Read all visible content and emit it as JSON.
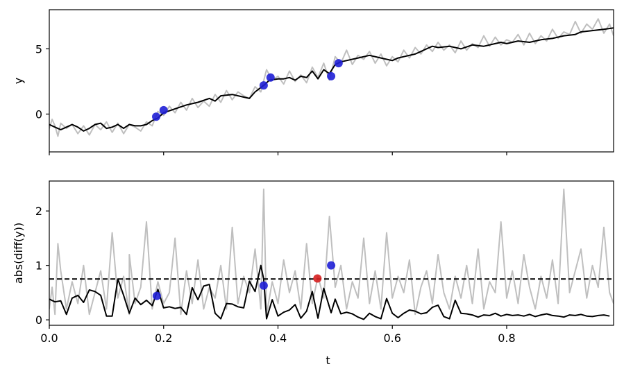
{
  "chart_data": [
    {
      "type": "line",
      "xlabel": "",
      "ylabel": "y",
      "xlim": [
        0.0,
        0.987
      ],
      "ylim": [
        -2.9,
        8.0
      ],
      "xticks": [
        0.0,
        0.2,
        0.4,
        0.6,
        0.8
      ],
      "show_xtick_labels": false,
      "yticks": [
        0,
        5
      ],
      "yticklabels": [
        "0",
        "5"
      ],
      "grid": false,
      "series": [
        {
          "role": "raw",
          "color": "#bfbfbf",
          "x": [
            0.0,
            0.005,
            0.01,
            0.015,
            0.02,
            0.03,
            0.04,
            0.05,
            0.06,
            0.07,
            0.08,
            0.09,
            0.1,
            0.11,
            0.12,
            0.13,
            0.14,
            0.15,
            0.16,
            0.17,
            0.18,
            0.19,
            0.2,
            0.21,
            0.22,
            0.23,
            0.24,
            0.25,
            0.26,
            0.27,
            0.28,
            0.29,
            0.3,
            0.31,
            0.32,
            0.33,
            0.34,
            0.35,
            0.36,
            0.37,
            0.38,
            0.39,
            0.4,
            0.41,
            0.42,
            0.43,
            0.44,
            0.45,
            0.46,
            0.47,
            0.48,
            0.49,
            0.5,
            0.51,
            0.52,
            0.53,
            0.54,
            0.55,
            0.56,
            0.57,
            0.58,
            0.59,
            0.6,
            0.61,
            0.62,
            0.63,
            0.64,
            0.65,
            0.66,
            0.67,
            0.68,
            0.69,
            0.7,
            0.71,
            0.72,
            0.73,
            0.74,
            0.75,
            0.76,
            0.77,
            0.78,
            0.79,
            0.8,
            0.81,
            0.82,
            0.83,
            0.84,
            0.85,
            0.86,
            0.87,
            0.88,
            0.89,
            0.9,
            0.91,
            0.92,
            0.93,
            0.94,
            0.95,
            0.96,
            0.97,
            0.98,
            0.987
          ],
          "y": [
            -1.1,
            -0.4,
            -0.9,
            -1.7,
            -0.7,
            -1.1,
            -0.8,
            -1.5,
            -0.9,
            -1.6,
            -0.8,
            -1.2,
            -0.6,
            -1.4,
            -0.7,
            -1.5,
            -0.8,
            -1.0,
            -1.3,
            -0.6,
            -0.9,
            0.2,
            -0.1,
            0.6,
            0.1,
            0.9,
            0.3,
            1.2,
            0.5,
            1.0,
            0.6,
            1.5,
            0.9,
            1.8,
            1.1,
            1.7,
            1.4,
            1.2,
            2.1,
            1.7,
            3.4,
            2.6,
            2.9,
            2.3,
            3.3,
            2.5,
            3.0,
            2.4,
            3.6,
            2.8,
            3.9,
            2.6,
            4.4,
            3.9,
            4.9,
            3.8,
            4.5,
            4.2,
            4.8,
            3.9,
            4.6,
            3.7,
            4.4,
            4.0,
            4.9,
            4.3,
            5.1,
            4.6,
            5.3,
            4.8,
            5.5,
            4.9,
            5.3,
            4.7,
            5.6,
            4.9,
            5.4,
            5.1,
            6.0,
            5.2,
            5.9,
            5.3,
            5.7,
            5.5,
            6.1,
            5.3,
            6.2,
            5.4,
            6.0,
            5.6,
            6.5,
            5.8,
            6.3,
            6.1,
            7.1,
            6.2,
            6.9,
            6.5,
            7.3,
            6.2,
            6.9,
            6.0
          ],
          "linewidth": 2
        },
        {
          "role": "smoothed",
          "color": "#000000",
          "x": [
            0.0,
            0.01,
            0.02,
            0.03,
            0.04,
            0.05,
            0.06,
            0.07,
            0.08,
            0.09,
            0.1,
            0.11,
            0.12,
            0.13,
            0.14,
            0.15,
            0.16,
            0.17,
            0.18,
            0.19,
            0.2,
            0.22,
            0.24,
            0.26,
            0.28,
            0.29,
            0.3,
            0.32,
            0.34,
            0.35,
            0.36,
            0.375,
            0.385,
            0.4,
            0.41,
            0.42,
            0.43,
            0.44,
            0.45,
            0.46,
            0.47,
            0.48,
            0.49,
            0.5,
            0.51,
            0.52,
            0.54,
            0.56,
            0.58,
            0.6,
            0.61,
            0.62,
            0.64,
            0.65,
            0.66,
            0.67,
            0.68,
            0.7,
            0.72,
            0.74,
            0.76,
            0.78,
            0.79,
            0.8,
            0.82,
            0.84,
            0.86,
            0.88,
            0.9,
            0.92,
            0.93,
            0.95,
            0.97,
            0.987
          ],
          "y": [
            -0.8,
            -1.0,
            -1.2,
            -1.0,
            -0.8,
            -1.0,
            -1.3,
            -1.1,
            -0.8,
            -0.7,
            -1.1,
            -1.0,
            -0.8,
            -1.1,
            -0.8,
            -0.9,
            -0.9,
            -0.8,
            -0.5,
            -0.3,
            0.1,
            0.4,
            0.7,
            0.9,
            1.2,
            1.0,
            1.4,
            1.5,
            1.3,
            1.2,
            1.7,
            2.2,
            2.6,
            2.7,
            2.7,
            2.8,
            2.6,
            2.9,
            2.8,
            3.3,
            2.7,
            3.4,
            3.1,
            3.8,
            4.0,
            4.1,
            4.3,
            4.5,
            4.3,
            4.1,
            4.3,
            4.4,
            4.6,
            4.8,
            5.0,
            5.2,
            5.1,
            5.2,
            5.0,
            5.3,
            5.2,
            5.4,
            5.5,
            5.4,
            5.6,
            5.5,
            5.7,
            5.8,
            6.0,
            6.1,
            6.3,
            6.4,
            6.5,
            6.6
          ],
          "linewidth": 2
        }
      ],
      "markers": [
        {
          "x": 0.187,
          "y": -0.2,
          "color": "#1f1fd6"
        },
        {
          "x": 0.2,
          "y": 0.3,
          "color": "#1f1fd6"
        },
        {
          "x": 0.375,
          "y": 2.2,
          "color": "#1f1fd6"
        },
        {
          "x": 0.387,
          "y": 2.8,
          "color": "#1f1fd6"
        },
        {
          "x": 0.493,
          "y": 2.9,
          "color": "#1f1fd6"
        },
        {
          "x": 0.506,
          "y": 3.9,
          "color": "#1f1fd6"
        }
      ]
    },
    {
      "type": "line",
      "xlabel": "t",
      "ylabel": "abs(diff(y))",
      "xlim": [
        0.0,
        0.987
      ],
      "ylim": [
        -0.1,
        2.55
      ],
      "xticks": [
        0.0,
        0.2,
        0.4,
        0.6,
        0.8
      ],
      "xticklabels": [
        "0.0",
        "0.2",
        "0.4",
        "0.6",
        "0.8"
      ],
      "show_xtick_labels": true,
      "yticks": [
        0,
        1,
        2
      ],
      "yticklabels": [
        "0",
        "1",
        "2"
      ],
      "grid": false,
      "threshold": {
        "y": 0.75,
        "color": "#000000",
        "style": "dashed"
      },
      "series": [
        {
          "role": "raw",
          "color": "#bfbfbf",
          "x": [
            0.0,
            0.005,
            0.01,
            0.015,
            0.02,
            0.03,
            0.04,
            0.05,
            0.06,
            0.07,
            0.08,
            0.09,
            0.1,
            0.11,
            0.12,
            0.13,
            0.14,
            0.14,
            0.15,
            0.16,
            0.17,
            0.18,
            0.19,
            0.2,
            0.21,
            0.22,
            0.23,
            0.24,
            0.25,
            0.26,
            0.27,
            0.28,
            0.29,
            0.3,
            0.31,
            0.32,
            0.33,
            0.34,
            0.35,
            0.36,
            0.37,
            0.375,
            0.38,
            0.39,
            0.4,
            0.41,
            0.42,
            0.43,
            0.44,
            0.45,
            0.46,
            0.47,
            0.48,
            0.49,
            0.5,
            0.51,
            0.52,
            0.53,
            0.54,
            0.55,
            0.56,
            0.57,
            0.58,
            0.59,
            0.6,
            0.61,
            0.62,
            0.63,
            0.64,
            0.65,
            0.66,
            0.67,
            0.68,
            0.69,
            0.7,
            0.71,
            0.72,
            0.73,
            0.74,
            0.75,
            0.76,
            0.77,
            0.78,
            0.79,
            0.8,
            0.81,
            0.82,
            0.83,
            0.84,
            0.85,
            0.86,
            0.87,
            0.88,
            0.89,
            0.9,
            0.91,
            0.92,
            0.93,
            0.94,
            0.95,
            0.96,
            0.97,
            0.98,
            0.987
          ],
          "y": [
            0.2,
            0.6,
            0.1,
            1.4,
            0.9,
            0.2,
            0.7,
            0.3,
            1.0,
            0.1,
            0.5,
            0.9,
            0.2,
            1.6,
            0.4,
            0.8,
            0.1,
            1.2,
            0.3,
            0.6,
            1.8,
            0.2,
            0.7,
            0.3,
            0.5,
            1.5,
            0.1,
            0.9,
            0.3,
            1.1,
            0.2,
            0.6,
            0.4,
            1.0,
            0.2,
            1.7,
            0.3,
            0.8,
            0.5,
            1.3,
            0.2,
            2.4,
            0.1,
            0.7,
            0.3,
            1.1,
            0.5,
            0.9,
            0.2,
            1.4,
            0.3,
            0.8,
            0.4,
            1.9,
            0.6,
            1.0,
            0.2,
            0.7,
            0.4,
            1.5,
            0.3,
            0.9,
            0.2,
            1.6,
            0.4,
            0.8,
            0.5,
            1.1,
            0.1,
            0.6,
            0.9,
            0.3,
            1.2,
            0.5,
            0.2,
            0.8,
            0.4,
            1.0,
            0.3,
            1.3,
            0.2,
            0.7,
            0.5,
            1.8,
            0.4,
            0.9,
            0.3,
            1.2,
            0.6,
            0.2,
            0.8,
            0.4,
            1.1,
            0.3,
            2.4,
            0.5,
            0.9,
            1.3,
            0.4,
            1.0,
            0.6,
            1.7,
            0.5,
            0.3
          ],
          "linewidth": 2
        },
        {
          "role": "smoothed",
          "color": "#000000",
          "x": [
            0.0,
            0.01,
            0.02,
            0.03,
            0.04,
            0.05,
            0.06,
            0.07,
            0.08,
            0.09,
            0.1,
            0.11,
            0.12,
            0.13,
            0.14,
            0.15,
            0.16,
            0.17,
            0.18,
            0.19,
            0.2,
            0.21,
            0.22,
            0.23,
            0.24,
            0.25,
            0.26,
            0.27,
            0.28,
            0.29,
            0.3,
            0.31,
            0.32,
            0.33,
            0.34,
            0.35,
            0.36,
            0.37,
            0.375,
            0.38,
            0.39,
            0.4,
            0.41,
            0.42,
            0.43,
            0.44,
            0.45,
            0.46,
            0.47,
            0.48,
            0.493,
            0.5,
            0.51,
            0.52,
            0.53,
            0.54,
            0.55,
            0.56,
            0.57,
            0.58,
            0.59,
            0.6,
            0.61,
            0.62,
            0.63,
            0.64,
            0.65,
            0.66,
            0.67,
            0.68,
            0.69,
            0.7,
            0.71,
            0.72,
            0.73,
            0.74,
            0.75,
            0.76,
            0.77,
            0.78,
            0.79,
            0.8,
            0.81,
            0.82,
            0.83,
            0.84,
            0.85,
            0.86,
            0.87,
            0.88,
            0.89,
            0.9,
            0.91,
            0.92,
            0.93,
            0.94,
            0.95,
            0.96,
            0.97,
            0.98
          ],
          "y": [
            0.38,
            0.33,
            0.35,
            0.1,
            0.4,
            0.45,
            0.32,
            0.55,
            0.52,
            0.45,
            0.07,
            0.07,
            0.75,
            0.45,
            0.12,
            0.4,
            0.28,
            0.36,
            0.26,
            0.56,
            0.22,
            0.24,
            0.21,
            0.23,
            0.1,
            0.59,
            0.37,
            0.62,
            0.65,
            0.12,
            0.02,
            0.3,
            0.29,
            0.24,
            0.22,
            0.71,
            0.52,
            1.0,
            0.75,
            0.02,
            0.37,
            0.07,
            0.14,
            0.18,
            0.28,
            0.03,
            0.16,
            0.52,
            0.03,
            0.58,
            0.13,
            0.38,
            0.11,
            0.14,
            0.11,
            0.05,
            0.01,
            0.12,
            0.06,
            0.02,
            0.39,
            0.12,
            0.04,
            0.12,
            0.18,
            0.16,
            0.11,
            0.13,
            0.23,
            0.27,
            0.06,
            0.02,
            0.36,
            0.12,
            0.11,
            0.09,
            0.05,
            0.09,
            0.08,
            0.12,
            0.07,
            0.1,
            0.08,
            0.09,
            0.07,
            0.1,
            0.06,
            0.09,
            0.11,
            0.08,
            0.07,
            0.05,
            0.09,
            0.08,
            0.1,
            0.07,
            0.06,
            0.08,
            0.09,
            0.07
          ],
          "linewidth": 2
        }
      ],
      "markers": [
        {
          "x": 0.188,
          "y": 0.44,
          "color": "#1f1fd6"
        },
        {
          "x": 0.375,
          "y": 0.63,
          "color": "#1f1fd6"
        },
        {
          "x": 0.469,
          "y": 0.76,
          "color": "#d62020"
        },
        {
          "x": 0.493,
          "y": 1.0,
          "color": "#1f1fd6"
        }
      ]
    }
  ]
}
